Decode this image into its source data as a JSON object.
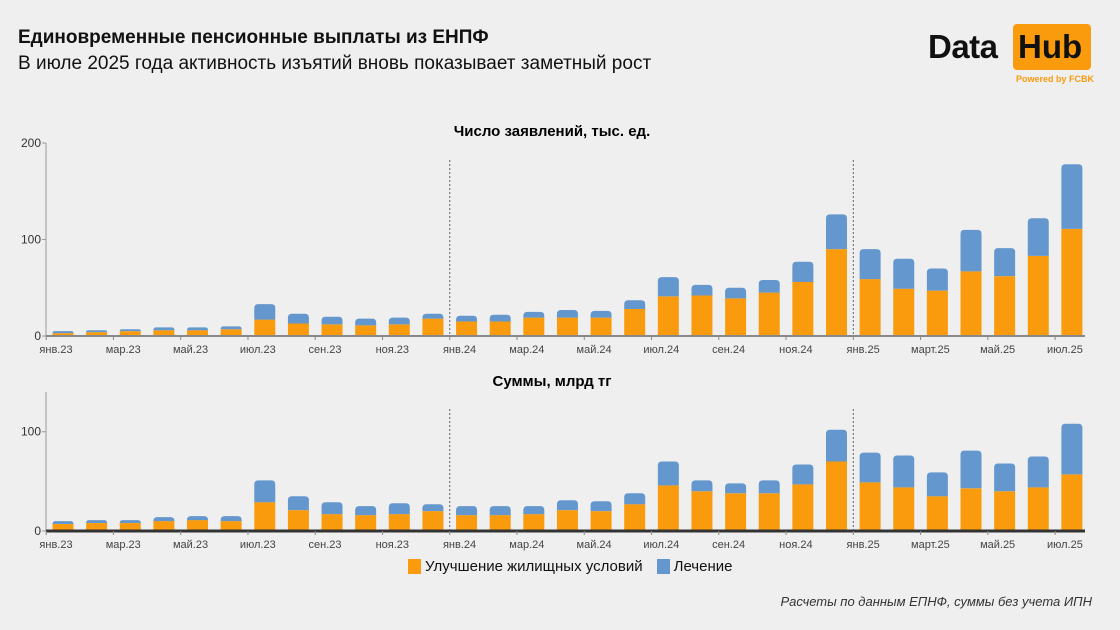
{
  "header": {
    "title": "Единовременные пенсионные выплаты из ЕНПФ",
    "subtitle": "В июле 2025 года активность изъятий вновь показывает заметный рост"
  },
  "logo": {
    "word1": "Data",
    "word2": "Hub",
    "tagline": "Powered by FCBK"
  },
  "colors": {
    "housing": "#f99b0c",
    "treatment": "#6497cd",
    "background": "#efefef"
  },
  "legend": {
    "housing": "Улучшение жилищных условий",
    "treatment": "Лечение"
  },
  "footnote": "Расчеты по данным ЕПНФ, суммы без учета ИПН",
  "chart_data": [
    {
      "type": "bar",
      "stacked": true,
      "title": "Число заявлений, тыс. ед.",
      "x_tick_labels": [
        "янв.23",
        "мар.23",
        "май.23",
        "июл.23",
        "сен.23",
        "ноя.23",
        "янв.24",
        "мар.24",
        "май.24",
        "июл.24",
        "сен.24",
        "ноя.24",
        "янв.25",
        "март.25",
        "май.25",
        "июл.25"
      ],
      "period": "янв.23 – июл.25 (monthly)",
      "y_ticks": [
        0,
        100,
        200
      ],
      "ylim": [
        0,
        200
      ],
      "year_separators_before": [
        "янв.24",
        "янв.25"
      ],
      "legend": "bottom",
      "series": [
        {
          "name": "Улучшение жилищных условий",
          "values": [
            3,
            4,
            5,
            6,
            6,
            7,
            17,
            13,
            12,
            11,
            12,
            18,
            15,
            15,
            19,
            19,
            19,
            28,
            41,
            42,
            39,
            45,
            56,
            90,
            59,
            49,
            47,
            67,
            62,
            83,
            111
          ]
        },
        {
          "name": "Лечение",
          "values": [
            2,
            2,
            2,
            3,
            3,
            3,
            16,
            10,
            8,
            7,
            7,
            5,
            6,
            7,
            6,
            8,
            7,
            9,
            20,
            11,
            11,
            13,
            21,
            36,
            31,
            31,
            23,
            43,
            29,
            39,
            67
          ]
        }
      ]
    },
    {
      "type": "bar",
      "stacked": true,
      "title": "Суммы, млрд тг",
      "x_tick_labels": [
        "янв.23",
        "мар.23",
        "май.23",
        "июл.23",
        "сен.23",
        "ноя.23",
        "янв.24",
        "мар.24",
        "май.24",
        "июл.24",
        "сен.24",
        "ноя.24",
        "янв.25",
        "март.25",
        "май.25",
        "июл.25"
      ],
      "period": "янв.23 – июл.25 (monthly)",
      "y_ticks": [
        0,
        100
      ],
      "ylim": [
        0,
        140
      ],
      "year_separators_before": [
        "янв.24",
        "янв.25"
      ],
      "legend": "bottom",
      "series": [
        {
          "name": "Улучшение жилищных условий",
          "values": [
            7,
            8,
            8,
            10,
            11,
            10,
            29,
            21,
            17,
            16,
            17,
            20,
            16,
            16,
            17,
            21,
            20,
            27,
            46,
            40,
            38,
            38,
            47,
            70,
            49,
            44,
            35,
            43,
            40,
            44,
            57
          ]
        },
        {
          "name": "Лечение",
          "values": [
            3,
            3,
            3,
            4,
            4,
            5,
            22,
            14,
            12,
            9,
            11,
            7,
            9,
            9,
            8,
            10,
            10,
            11,
            24,
            11,
            10,
            13,
            20,
            32,
            30,
            32,
            24,
            38,
            28,
            31,
            51
          ]
        }
      ]
    }
  ]
}
